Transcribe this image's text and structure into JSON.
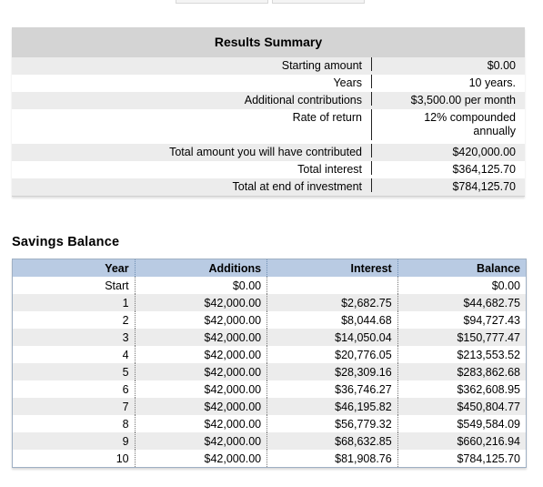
{
  "summary": {
    "title": "Results Summary",
    "rows": [
      {
        "label": "Starting amount",
        "value": "$0.00"
      },
      {
        "label": "Years",
        "value": "10 years."
      },
      {
        "label": "Additional contributions",
        "value": "$3,500.00 per month"
      },
      {
        "label": "Rate of return",
        "value": "12% compounded annually"
      },
      {
        "label": "Total amount you will have contributed",
        "value": "$420,000.00"
      },
      {
        "label": "Total interest",
        "value": "$364,125.70"
      },
      {
        "label": "Total at end of investment",
        "value": "$784,125.70"
      }
    ]
  },
  "balance": {
    "title": "Savings Balance",
    "headers": {
      "year": "Year",
      "additions": "Additions",
      "interest": "Interest",
      "balance": "Balance"
    },
    "rows": [
      {
        "year": "Start",
        "additions": "$0.00",
        "interest": "",
        "balance": "$0.00"
      },
      {
        "year": "1",
        "additions": "$42,000.00",
        "interest": "$2,682.75",
        "balance": "$44,682.75"
      },
      {
        "year": "2",
        "additions": "$42,000.00",
        "interest": "$8,044.68",
        "balance": "$94,727.43"
      },
      {
        "year": "3",
        "additions": "$42,000.00",
        "interest": "$14,050.04",
        "balance": "$150,777.47"
      },
      {
        "year": "4",
        "additions": "$42,000.00",
        "interest": "$20,776.05",
        "balance": "$213,553.52"
      },
      {
        "year": "5",
        "additions": "$42,000.00",
        "interest": "$28,309.16",
        "balance": "$283,862.68"
      },
      {
        "year": "6",
        "additions": "$42,000.00",
        "interest": "$36,746.27",
        "balance": "$362,608.95"
      },
      {
        "year": "7",
        "additions": "$42,000.00",
        "interest": "$46,195.82",
        "balance": "$450,804.77"
      },
      {
        "year": "8",
        "additions": "$42,000.00",
        "interest": "$56,779.32",
        "balance": "$549,584.09"
      },
      {
        "year": "9",
        "additions": "$42,000.00",
        "interest": "$68,632.85",
        "balance": "$660,216.94"
      },
      {
        "year": "10",
        "additions": "$42,000.00",
        "interest": "$81,908.76",
        "balance": "$784,125.70"
      }
    ]
  }
}
